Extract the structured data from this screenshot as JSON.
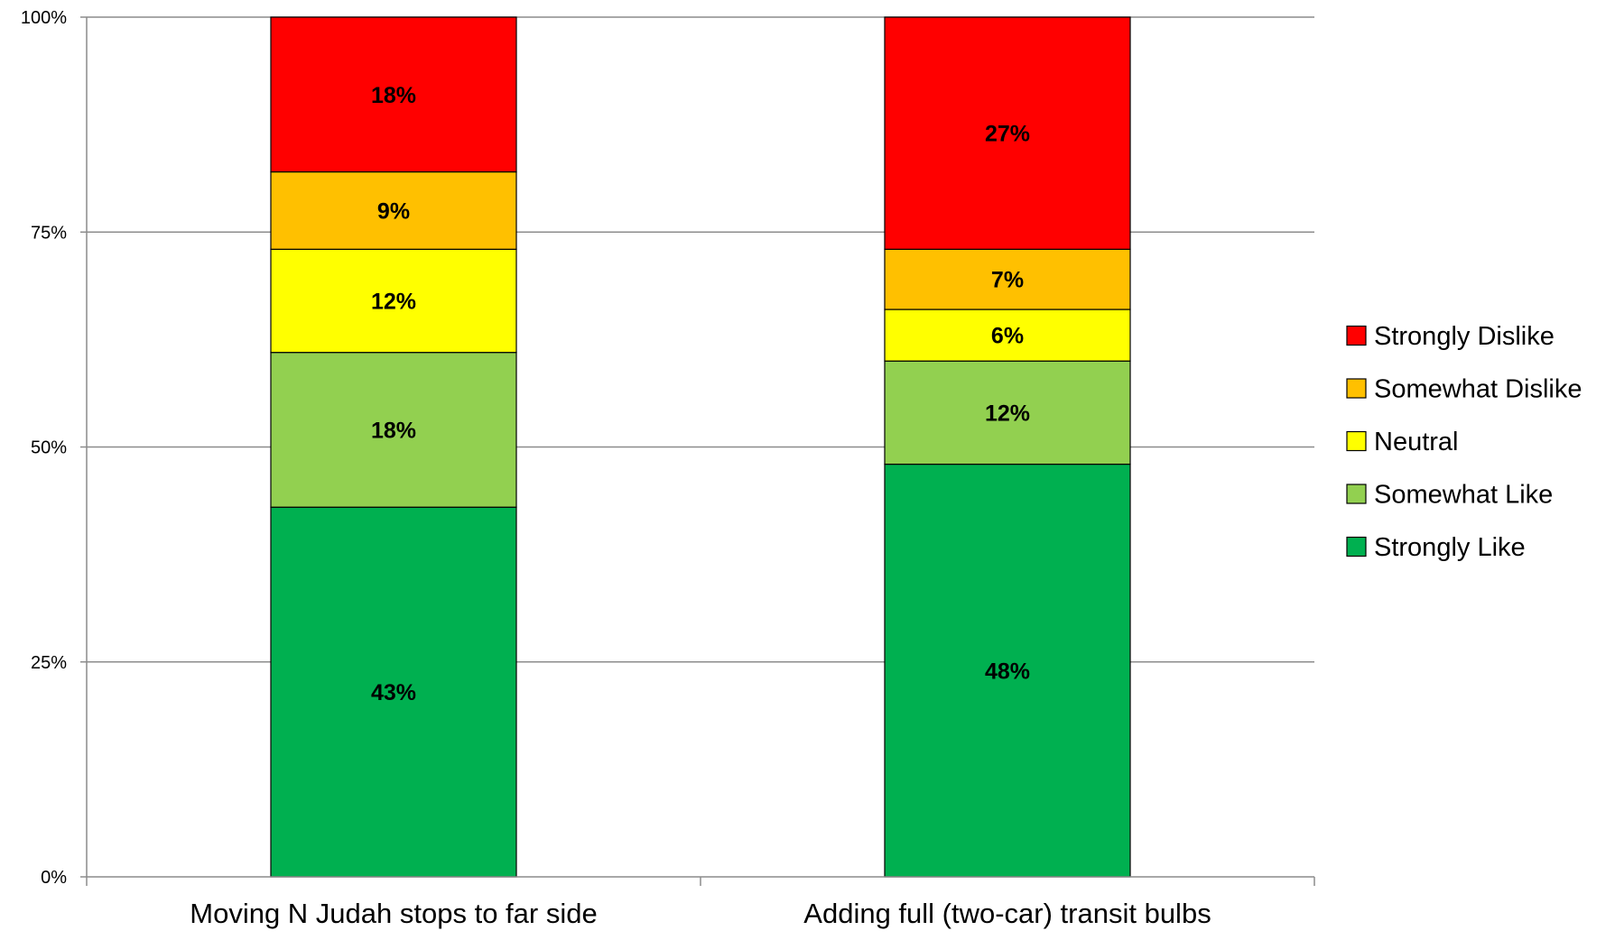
{
  "chart_data": {
    "type": "bar",
    "stacked": true,
    "percent_stacked": true,
    "categories": [
      "Moving N Judah stops to far side",
      "Adding full (two-car) transit bulbs"
    ],
    "series": [
      {
        "name": "Strongly Like",
        "values": [
          43,
          48
        ],
        "labels": [
          "43%",
          "48%"
        ],
        "color": "#00b050"
      },
      {
        "name": "Somewhat Like",
        "values": [
          18,
          12
        ],
        "labels": [
          "18%",
          "12%"
        ],
        "color": "#92d050"
      },
      {
        "name": "Neutral",
        "values": [
          12,
          6
        ],
        "labels": [
          "12%",
          "6%"
        ],
        "color": "#ffff00"
      },
      {
        "name": "Somewhat Dislike",
        "values": [
          9,
          7
        ],
        "labels": [
          "9%",
          "7%"
        ],
        "color": "#ffc000"
      },
      {
        "name": "Strongly Dislike",
        "values": [
          18,
          27
        ],
        "labels": [
          "18%",
          "27%"
        ],
        "color": "#ff0000"
      }
    ],
    "y_ticks": [
      "0%",
      "25%",
      "50%",
      "75%",
      "100%"
    ],
    "ylim": [
      0,
      100
    ],
    "grid": true,
    "legend_position": "right"
  }
}
